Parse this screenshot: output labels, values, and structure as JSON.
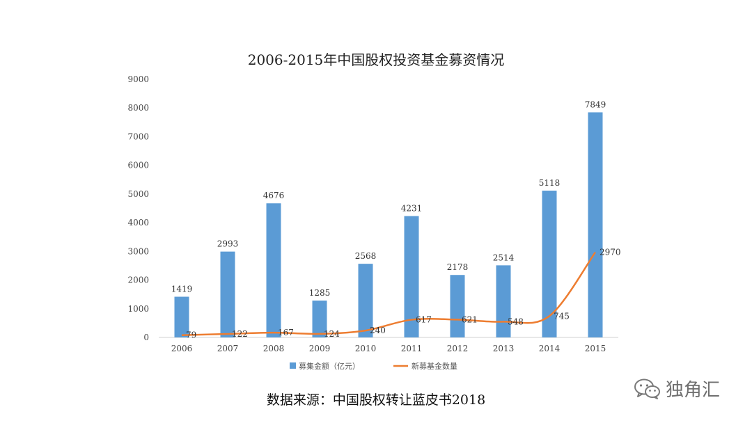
{
  "chart_data": {
    "type": "bar",
    "title": "2006-2015年中国股权投资基金募资情况",
    "categories": [
      "2006",
      "2007",
      "2008",
      "2009",
      "2010",
      "2011",
      "2012",
      "2013",
      "2014",
      "2015"
    ],
    "series": [
      {
        "name": "募集金额（亿元）",
        "type": "bar",
        "color": "#5b9bd5",
        "values": [
          1419,
          2993,
          4676,
          1285,
          2568,
          4231,
          2178,
          2514,
          5118,
          7849
        ]
      },
      {
        "name": "新募基金数量",
        "type": "line",
        "color": "#ed7d31",
        "values": [
          79,
          122,
          167,
          124,
          240,
          617,
          621,
          548,
          745,
          2970
        ]
      }
    ],
    "ylim": [
      0,
      9000
    ],
    "yticks": [
      0,
      1000,
      2000,
      3000,
      4000,
      5000,
      6000,
      7000,
      8000,
      9000
    ],
    "grid": false,
    "legend_position": "bottom"
  },
  "source_text": "数据来源：中国股权转让蓝皮书2018",
  "watermark": {
    "text": "独角汇",
    "icon": "wechat-logo-icon"
  }
}
